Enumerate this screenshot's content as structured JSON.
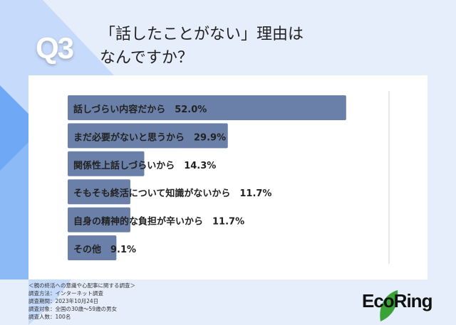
{
  "question_number": "Q3",
  "title_line1": "「話したことがない」理由は",
  "title_line2": "なんですか？",
  "chart_data": {
    "type": "bar",
    "orientation": "horizontal",
    "categories": [
      "話しづらい内容だから",
      "まだ必要がないと思うから",
      "関係性上話しづらいから",
      "そもそも終活について知識がないから",
      "自身の精神的な負担が辛いから",
      "その他"
    ],
    "values": [
      52.0,
      29.9,
      14.3,
      11.7,
      11.7,
      9.1
    ],
    "labels": [
      "話しづらい内容だから　52.0%",
      "まだ必要がないと思うから　29.9%",
      "関係性上話しづらいから　14.3%",
      "そもそも終活について知識がないから　11.7%",
      "自身の精神的な負担が辛いから　11.7%",
      "その他　9.1%"
    ],
    "unit": "%",
    "xlim": [
      0,
      60
    ],
    "bar_color": "#6a80a8"
  },
  "footer": [
    "＜親の終活への意識や心配事に関する調査＞",
    "調査方法：インターネット調査",
    "調査期間：2023年10月24日",
    "調査対象：全国の30歳〜59歳の男女",
    "調査人数：100名"
  ],
  "logo": "EcoRing"
}
